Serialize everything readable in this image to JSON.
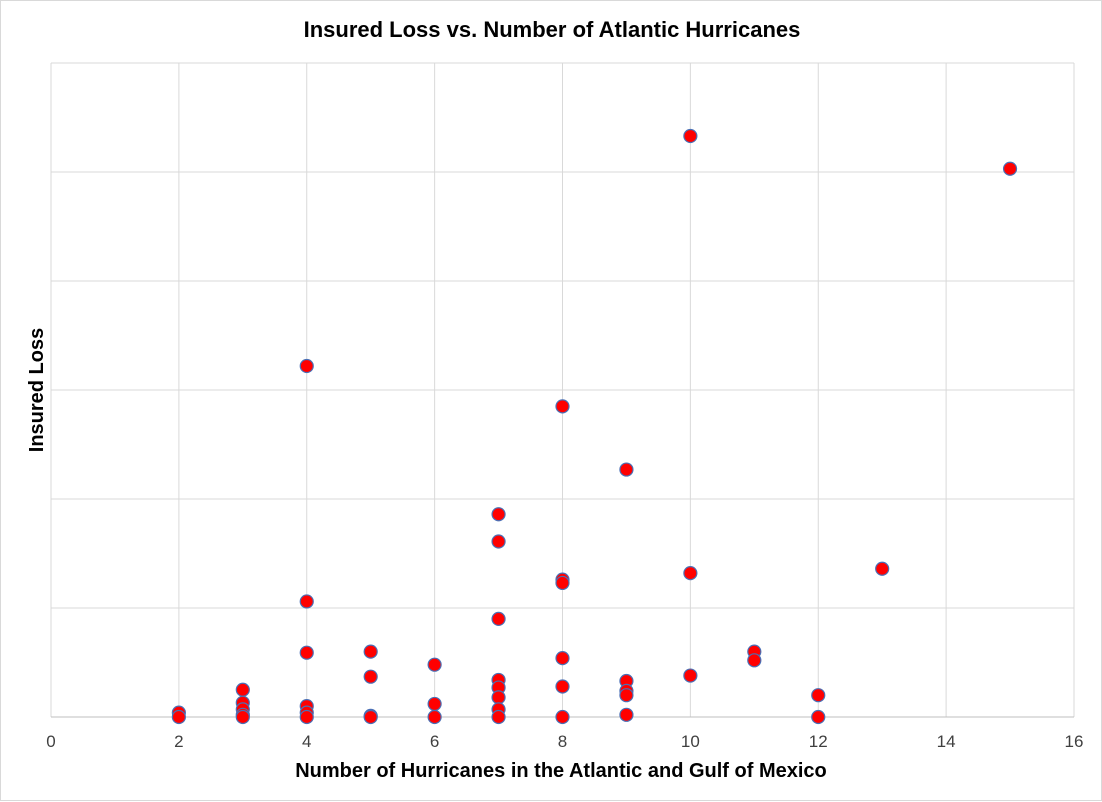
{
  "chart_data": {
    "type": "scatter",
    "title": "Insured Loss vs. Number of Atlantic Hurricanes",
    "xlabel": "Number of Hurricanes in the Atlantic and Gulf of Mexico",
    "ylabel": "Insured Loss",
    "xlim": [
      0,
      16
    ],
    "xticks": [
      "0",
      "2",
      "4",
      "6",
      "8",
      "10",
      "12",
      "14",
      "16"
    ],
    "ylim": [
      0,
      6
    ],
    "y_tick_labels_shown": false,
    "grid": true,
    "legend": "none",
    "marker_fill": "#ff0000",
    "marker_edge": "#4a6fb5",
    "points": [
      {
        "x": 2,
        "y": 0.04
      },
      {
        "x": 2,
        "y": 0.0
      },
      {
        "x": 3,
        "y": 0.25
      },
      {
        "x": 3,
        "y": 0.13
      },
      {
        "x": 3,
        "y": 0.07
      },
      {
        "x": 3,
        "y": 0.02
      },
      {
        "x": 3,
        "y": 0.0
      },
      {
        "x": 4,
        "y": 3.22
      },
      {
        "x": 4,
        "y": 1.06
      },
      {
        "x": 4,
        "y": 0.59
      },
      {
        "x": 4,
        "y": 0.1
      },
      {
        "x": 4,
        "y": 0.04
      },
      {
        "x": 4,
        "y": 0.0
      },
      {
        "x": 5,
        "y": 0.6
      },
      {
        "x": 5,
        "y": 0.37
      },
      {
        "x": 5,
        "y": 0.01
      },
      {
        "x": 5,
        "y": 0.0
      },
      {
        "x": 6,
        "y": 0.48
      },
      {
        "x": 6,
        "y": 0.12
      },
      {
        "x": 6,
        "y": 0.0
      },
      {
        "x": 7,
        "y": 1.86
      },
      {
        "x": 7,
        "y": 1.61
      },
      {
        "x": 7,
        "y": 0.9
      },
      {
        "x": 7,
        "y": 0.34
      },
      {
        "x": 7,
        "y": 0.27
      },
      {
        "x": 7,
        "y": 0.18
      },
      {
        "x": 7,
        "y": 0.07
      },
      {
        "x": 7,
        "y": 0.0
      },
      {
        "x": 8,
        "y": 2.85
      },
      {
        "x": 8,
        "y": 1.26
      },
      {
        "x": 8,
        "y": 1.23
      },
      {
        "x": 8,
        "y": 0.54
      },
      {
        "x": 8,
        "y": 0.28
      },
      {
        "x": 8,
        "y": 0.0
      },
      {
        "x": 9,
        "y": 2.27
      },
      {
        "x": 9,
        "y": 0.33
      },
      {
        "x": 9,
        "y": 0.24
      },
      {
        "x": 9,
        "y": 0.2
      },
      {
        "x": 9,
        "y": 0.02
      },
      {
        "x": 10,
        "y": 5.33
      },
      {
        "x": 10,
        "y": 1.32
      },
      {
        "x": 10,
        "y": 0.38
      },
      {
        "x": 11,
        "y": 0.6
      },
      {
        "x": 11,
        "y": 0.52
      },
      {
        "x": 12,
        "y": 0.2
      },
      {
        "x": 12,
        "y": 0.0
      },
      {
        "x": 13,
        "y": 1.36
      },
      {
        "x": 15,
        "y": 5.03
      }
    ]
  }
}
